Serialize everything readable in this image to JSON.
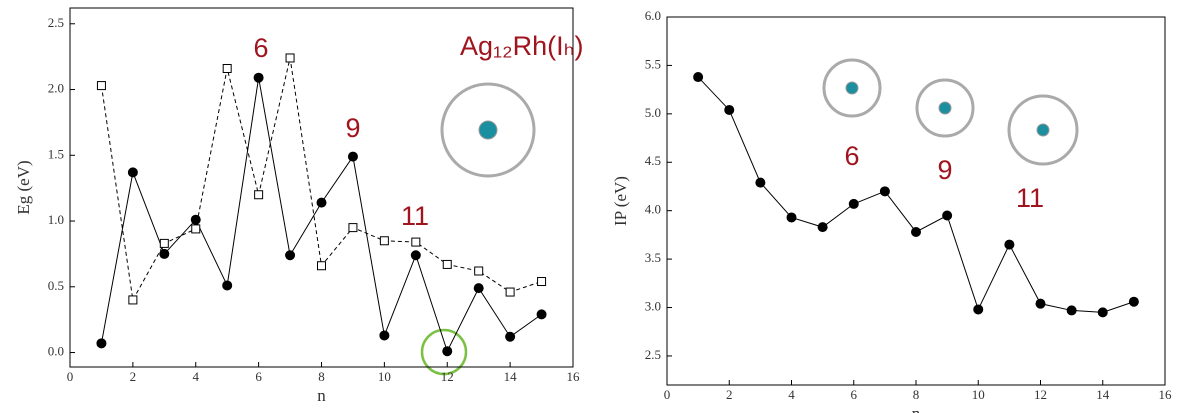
{
  "chart_data": [
    {
      "type": "line",
      "xlabel": "n",
      "ylabel": "Eg (eV)",
      "x": [
        1,
        2,
        3,
        4,
        5,
        6,
        7,
        8,
        9,
        10,
        11,
        12,
        13,
        14,
        15
      ],
      "series": [
        {
          "color": "#000000",
          "marker": "circle",
          "dash": false,
          "values": [
            0.07,
            1.37,
            0.75,
            1.01,
            0.51,
            2.09,
            0.74,
            1.14,
            1.49,
            0.13,
            0.74,
            0.01,
            0.49,
            0.12,
            0.29
          ]
        },
        {
          "color": "#000000",
          "marker": "square",
          "dash": true,
          "values": [
            2.03,
            0.4,
            0.83,
            0.94,
            2.16,
            1.2,
            2.24,
            0.66,
            0.95,
            0.85,
            0.84,
            0.67,
            0.62,
            0.46,
            0.54
          ]
        }
      ],
      "xlim": [
        0,
        16
      ],
      "xticks": [
        0,
        2,
        4,
        6,
        8,
        10,
        12,
        14,
        16
      ],
      "ylim": [
        -0.11,
        2.62
      ],
      "yticks": [
        {
          "value": 0,
          "label": "0.0"
        },
        0.5,
        {
          "value": 1,
          "label": "1.0"
        },
        1.5,
        {
          "value": 2,
          "label": "2.0"
        },
        2.5
      ],
      "annotations": [
        "6",
        "9",
        "11",
        "Ag₁₂Rh(Iₕ)"
      ]
    },
    {
      "type": "line",
      "xlabel": "n",
      "ylabel": "IP (eV)",
      "x": [
        1,
        2,
        3,
        4,
        5,
        6,
        7,
        8,
        9,
        10,
        11,
        12,
        13,
        14,
        15
      ],
      "series": [
        {
          "color": "#000000",
          "marker": "circle",
          "dash": false,
          "values": [
            5.38,
            5.04,
            4.29,
            3.93,
            3.83,
            4.07,
            4.2,
            3.78,
            3.95,
            2.98,
            3.65,
            3.04,
            2.97,
            2.95,
            3.06
          ]
        }
      ],
      "xlim": [
        0,
        16
      ],
      "xticks": [
        0,
        2,
        4,
        6,
        8,
        10,
        12,
        14,
        16
      ],
      "ylim": [
        2.2,
        6.0
      ],
      "yticks": [
        2.5,
        {
          "value": 3,
          "label": "3.0"
        },
        3.5,
        {
          "value": 4,
          "label": "4.0"
        },
        4.5,
        {
          "value": 5,
          "label": "5.0"
        },
        5.5,
        {
          "value": 6,
          "label": "6.0"
        }
      ],
      "annotations": [
        "6",
        "9",
        "11"
      ]
    }
  ]
}
